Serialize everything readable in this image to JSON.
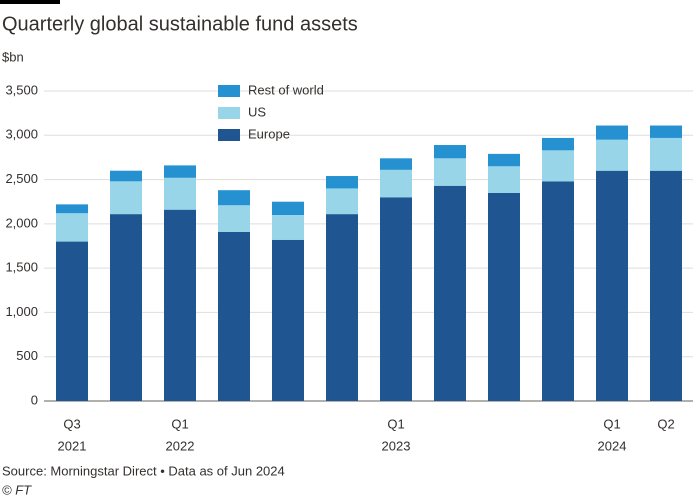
{
  "chart_data": {
    "type": "stacked_bar",
    "title": "Quarterly global sustainable fund assets",
    "y_label": "$bn",
    "source": "Source: Morningstar Direct • Data as of Jun 2024",
    "credit": "© FT",
    "categories": [
      "Q3",
      null,
      "Q1",
      null,
      null,
      null,
      "Q1",
      null,
      null,
      null,
      "Q1",
      "Q2"
    ],
    "category_years": [
      "2021",
      null,
      "2022",
      null,
      null,
      null,
      "2023",
      null,
      null,
      null,
      "2024",
      null
    ],
    "series": [
      {
        "name": "Europe",
        "color": "#1f5591",
        "values": [
          1800,
          2110,
          2160,
          1910,
          1820,
          2110,
          2300,
          2430,
          2350,
          2480,
          2600,
          2600
        ]
      },
      {
        "name": "US",
        "color": "#99d5e9",
        "values": [
          320,
          370,
          360,
          300,
          280,
          290,
          310,
          310,
          300,
          350,
          350,
          370
        ]
      },
      {
        "name": "Rest of world",
        "color": "#2591d1",
        "values": [
          100,
          120,
          140,
          170,
          150,
          140,
          130,
          150,
          140,
          140,
          160,
          140
        ]
      }
    ],
    "ylim": [
      0,
      3500
    ],
    "yticks": [
      0,
      500,
      {
        "value": 1000,
        "label": "1,000"
      },
      {
        "value": 1500,
        "label": "1,500"
      },
      {
        "value": 2000,
        "label": "2,000"
      },
      {
        "value": 2500,
        "label": "2,500"
      },
      {
        "value": 3000,
        "label": "3,000"
      },
      {
        "value": 3500,
        "label": "3,500"
      }
    ],
    "grid": true,
    "legend": "top-left"
  }
}
